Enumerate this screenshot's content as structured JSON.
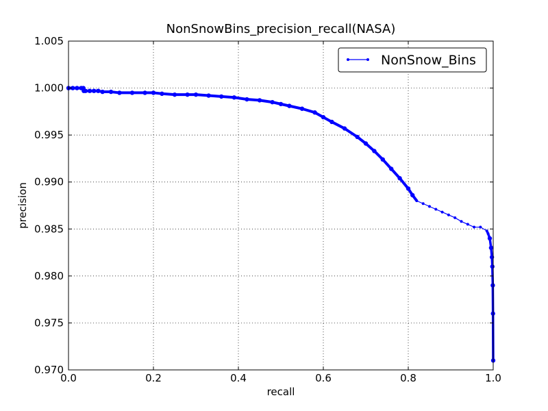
{
  "chart_data": {
    "type": "line",
    "title": "NonSnowBins_precision_recall(NASA)",
    "xlabel": "recall",
    "ylabel": "precision",
    "xlim": [
      0.0,
      1.0
    ],
    "ylim": [
      0.97,
      1.005
    ],
    "x_ticks": [
      "0.0",
      "0.2",
      "0.4",
      "0.6",
      "0.8",
      "1.0"
    ],
    "y_ticks": [
      "0.970",
      "0.975",
      "0.980",
      "0.985",
      "0.990",
      "0.995",
      "1.000",
      "1.005"
    ],
    "grid": true,
    "legend_position": "top-right",
    "line_color": "#0000ff",
    "series": [
      {
        "name": "NonSnow_Bins",
        "x": [
          0.0,
          0.01,
          0.02,
          0.03,
          0.035,
          0.036,
          0.04,
          0.05,
          0.06,
          0.07,
          0.08,
          0.1,
          0.12,
          0.15,
          0.18,
          0.2,
          0.22,
          0.25,
          0.28,
          0.3,
          0.33,
          0.36,
          0.39,
          0.42,
          0.45,
          0.48,
          0.5,
          0.52,
          0.55,
          0.58,
          0.6,
          0.62,
          0.65,
          0.68,
          0.7,
          0.72,
          0.74,
          0.76,
          0.78,
          0.8,
          0.81,
          0.82,
          0.835,
          0.85,
          0.865,
          0.88,
          0.895,
          0.91,
          0.925,
          0.94,
          0.955,
          0.97,
          0.985,
          0.988,
          0.992,
          0.995,
          0.997,
          0.998,
          0.999,
          0.9995,
          1.0
        ],
        "y": [
          1.0,
          1.0,
          1.0,
          1.0,
          1.0,
          0.9997,
          0.9997,
          0.9997,
          0.9997,
          0.9997,
          0.9996,
          0.9996,
          0.9995,
          0.9995,
          0.9995,
          0.9995,
          0.9994,
          0.9993,
          0.9993,
          0.9993,
          0.9992,
          0.9991,
          0.999,
          0.9988,
          0.9987,
          0.9985,
          0.9983,
          0.9981,
          0.9978,
          0.9974,
          0.9969,
          0.9964,
          0.9957,
          0.9948,
          0.9941,
          0.9933,
          0.9924,
          0.9914,
          0.9904,
          0.9893,
          0.9886,
          0.988,
          0.9877,
          0.9874,
          0.9871,
          0.9868,
          0.9865,
          0.9862,
          0.9858,
          0.9855,
          0.9852,
          0.9852,
          0.9848,
          0.9845,
          0.984,
          0.983,
          0.982,
          0.981,
          0.979,
          0.976,
          0.971
        ]
      }
    ]
  }
}
